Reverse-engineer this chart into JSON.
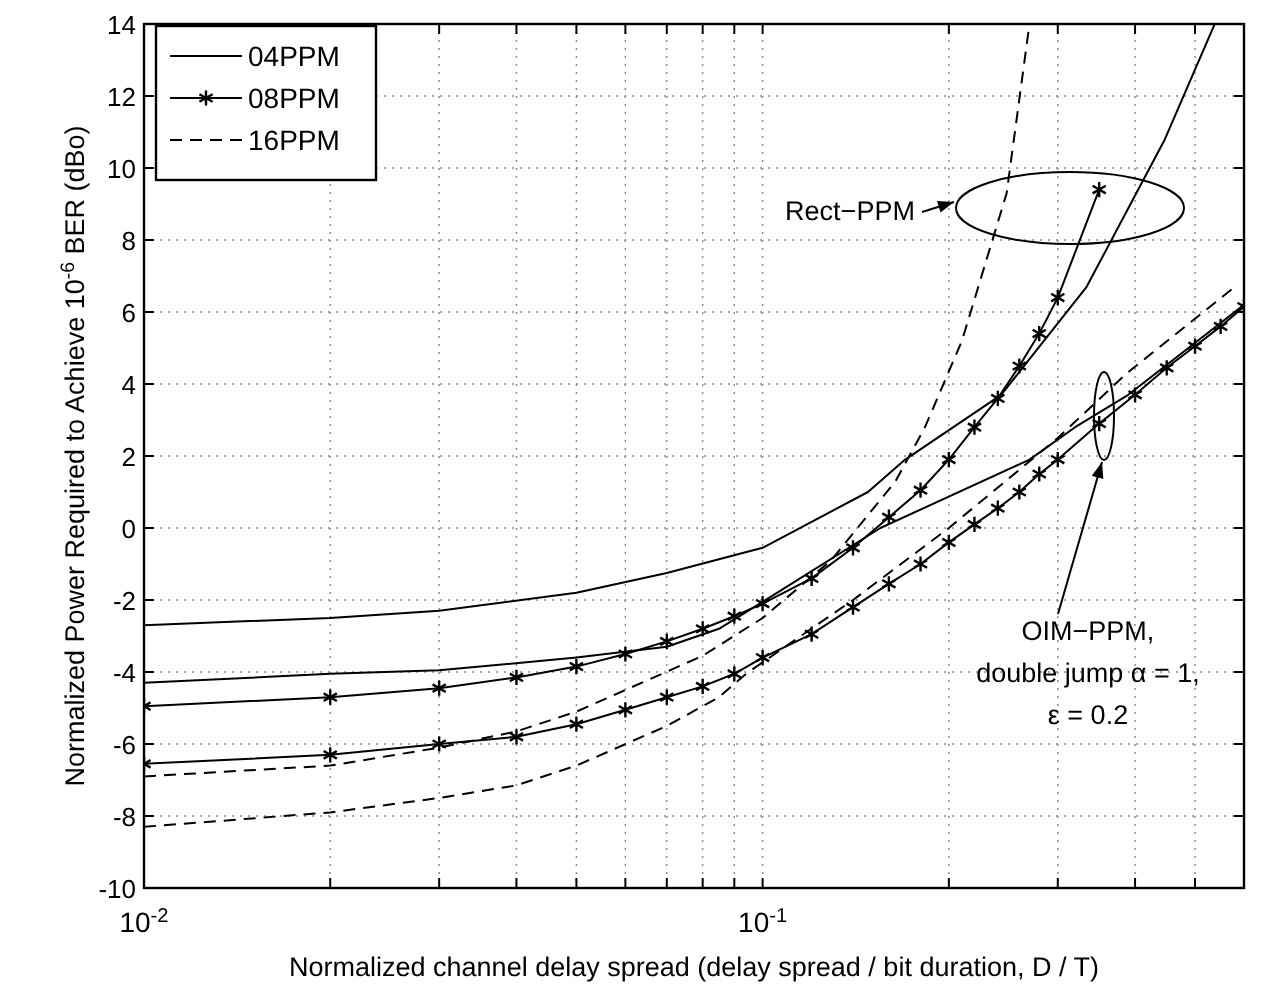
{
  "chart_data": {
    "type": "line",
    "xlabel": "Normalized channel delay spread (delay spread / bit duration, D / T)",
    "ylabel": "Normalized Power Required to Achieve 10$^{-6}$ BER (dBo)",
    "log": "x",
    "xlim": [
      0.01,
      0.6
    ],
    "ylim": [
      -10,
      14
    ],
    "xticks": [
      {
        "value": 0.01,
        "label": "10$^{-2}$"
      },
      {
        "value": 0.02,
        "label": null
      },
      {
        "value": 0.03,
        "label": null
      },
      {
        "value": 0.04,
        "label": null
      },
      {
        "value": 0.05,
        "label": null
      },
      {
        "value": 0.06,
        "label": null
      },
      {
        "value": 0.07,
        "label": null
      },
      {
        "value": 0.08,
        "label": null
      },
      {
        "value": 0.09,
        "label": null
      },
      {
        "value": 0.1,
        "label": "10$^{-1}$"
      },
      {
        "value": 0.2,
        "label": null
      },
      {
        "value": 0.3,
        "label": null
      },
      {
        "value": 0.4,
        "label": null
      },
      {
        "value": 0.5,
        "label": null
      }
    ],
    "yticks": [
      -10,
      -8,
      -6,
      -4,
      -2,
      0,
      2,
      4,
      6,
      8,
      10,
      12,
      14
    ],
    "grid": true,
    "legend": "top left",
    "series": [
      {
        "name": "04PPM",
        "color": "#000000",
        "line_style": "solid",
        "marker": "none",
        "x": [
          0.01,
          0.02,
          0.03,
          0.05,
          0.07,
          0.1,
          0.148,
          0.17,
          0.243,
          0.334,
          0.447,
          0.538
        ],
        "values": [
          -2.7,
          -2.5,
          -2.3,
          -1.8,
          -1.25,
          -0.55,
          1.0,
          1.9,
          3.7,
          6.7,
          10.8,
          14
        ]
      },
      {
        "name": "08PPM",
        "color": "#000000",
        "line_style": "solid",
        "marker": "cross",
        "x": [
          0.01,
          0.02,
          0.03,
          0.04,
          0.05,
          0.06,
          0.07,
          0.08,
          0.09,
          0.1,
          0.12,
          0.14,
          0.16,
          0.18,
          0.2,
          0.22,
          0.24,
          0.26,
          0.28,
          0.3,
          0.35
        ],
        "values": [
          -4.95,
          -4.7,
          -4.45,
          -4.15,
          -3.85,
          -3.5,
          -3.15,
          -2.8,
          -2.45,
          -2.1,
          -1.4,
          -0.55,
          0.3,
          1.05,
          1.9,
          2.8,
          3.6,
          4.5,
          5.4,
          6.4,
          9.4
        ]
      },
      {
        "name": "16PPM",
        "color": "#000000",
        "line_style": "dashed",
        "marker": "none",
        "x": [
          0.01,
          0.02,
          0.03,
          0.04,
          0.05,
          0.06,
          0.08,
          0.1,
          0.129,
          0.164,
          0.183,
          0.21,
          0.248,
          0.27
        ],
        "values": [
          -6.9,
          -6.6,
          -6.1,
          -5.65,
          -5.1,
          -4.5,
          -3.55,
          -2.5,
          -0.9,
          1.3,
          2.8,
          5.2,
          9.3,
          14
        ]
      },
      {
        "color": "#000000",
        "line_style": "solid",
        "marker": "none",
        "x": [
          0.01,
          0.02,
          0.03,
          0.05,
          0.07,
          0.085,
          0.1,
          0.155,
          0.27,
          0.32,
          0.39,
          0.6
        ],
        "values": [
          -4.3,
          -4.05,
          -3.95,
          -3.6,
          -3.3,
          -2.8,
          -2.05,
          0.0,
          1.9,
          2.8,
          3.7,
          6.2
        ]
      },
      {
        "color": "#000000",
        "line_style": "solid",
        "marker": "cross",
        "x": [
          0.01,
          0.02,
          0.03,
          0.04,
          0.05,
          0.06,
          0.07,
          0.08,
          0.09,
          0.1,
          0.12,
          0.14,
          0.16,
          0.18,
          0.2,
          0.22,
          0.24,
          0.26,
          0.28,
          0.3,
          0.35,
          0.4,
          0.45,
          0.5,
          0.55,
          0.6
        ],
        "values": [
          -6.55,
          -6.3,
          -6.0,
          -5.8,
          -5.45,
          -5.05,
          -4.7,
          -4.4,
          -4.05,
          -3.6,
          -2.95,
          -2.2,
          -1.55,
          -1.0,
          -0.4,
          0.1,
          0.55,
          1.0,
          1.5,
          1.9,
          2.9,
          3.7,
          4.45,
          5.05,
          5.6,
          6.15
        ]
      },
      {
        "color": "#000000",
        "line_style": "dashed",
        "marker": "none",
        "x": [
          0.01,
          0.02,
          0.03,
          0.04,
          0.05,
          0.07,
          0.085,
          0.094,
          0.14,
          0.2,
          0.3,
          0.388,
          0.58
        ],
        "values": [
          -8.3,
          -7.9,
          -7.5,
          -7.15,
          -6.6,
          -5.5,
          -4.7,
          -4.05,
          -2.0,
          0.0,
          2.5,
          4.3,
          6.7
        ]
      }
    ],
    "annotations": [
      "Rect−PPM",
      "OIM−PPM,\ndouble jump α = 1,\nε = 0.2"
    ]
  }
}
